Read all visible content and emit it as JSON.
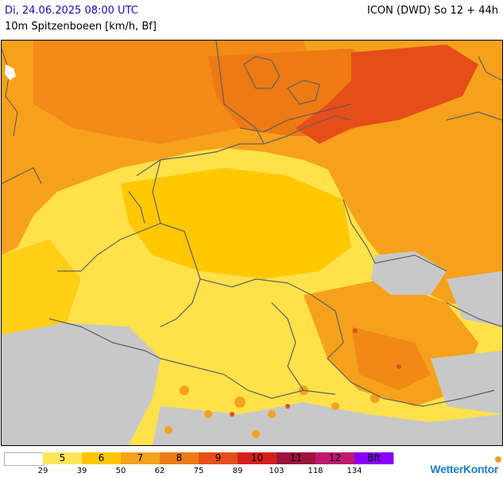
{
  "header": {
    "date_line": "Di, 24.06.2025 08:00 UTC",
    "subtitle": "10m Spitzenboeen [km/h, Bf]",
    "model_line": "ICON (DWD) So 12 + 44h"
  },
  "legend": {
    "classes": [
      {
        "label": "",
        "color": "#ffffff"
      },
      {
        "label": "5",
        "color": "#ffe65a"
      },
      {
        "label": "6",
        "color": "#ffc600"
      },
      {
        "label": "7",
        "color": "#f6a11c"
      },
      {
        "label": "8",
        "color": "#ee7a14"
      },
      {
        "label": "9",
        "color": "#e64e19"
      },
      {
        "label": "10",
        "color": "#d41e1e"
      },
      {
        "label": "11",
        "color": "#9c143c"
      },
      {
        "label": "12",
        "color": "#c0186a"
      },
      {
        "label": "Bft",
        "color": "#8a00ff"
      }
    ],
    "ticks": [
      "29",
      "39",
      "50",
      "62",
      "75",
      "89",
      "103",
      "118",
      "134"
    ]
  },
  "brand": "WetterKontor",
  "map": {
    "colors": {
      "land_light": "#ffe14a",
      "land_mid": "#ffc800",
      "sea_orange": "#f6a11c",
      "sea_dark": "#ee7a14",
      "baltic_red": "#e64e19",
      "mountain_grey": "#c8c8c8",
      "borders": "#606060",
      "borders_coast": "#555555"
    },
    "icons": [
      "weather-map",
      "country-borders"
    ]
  }
}
